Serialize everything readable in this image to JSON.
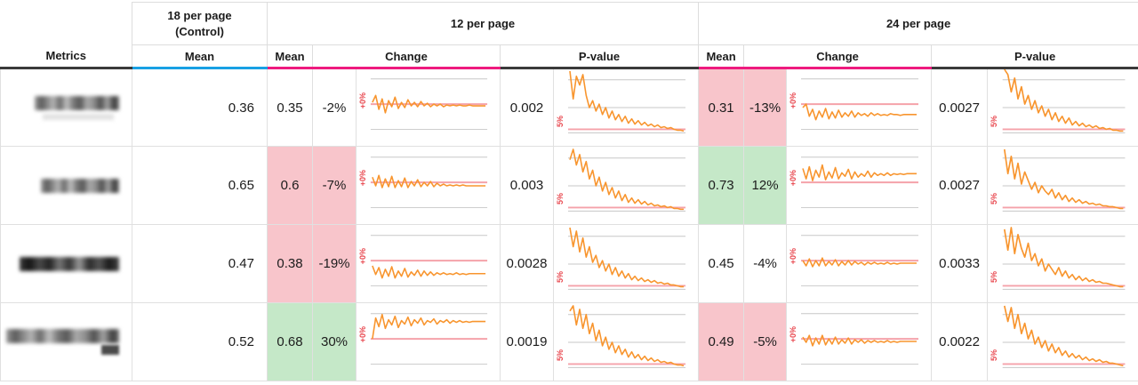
{
  "header": {
    "metrics": "Metrics",
    "control": {
      "line1": "18 per page",
      "line2": "(Control)"
    },
    "group12": "12 per page",
    "group24": "24 per page",
    "mean": "Mean",
    "change": "Change",
    "pvalue": "P-value"
  },
  "spark": {
    "change_label": "+0%",
    "pvalue_label": "5%"
  },
  "colors": {
    "control_underline": "#18A0E4",
    "variant_underline": "#EE1A7E",
    "pvalue_underline": "#3A3A3A",
    "negative_bg": "#F8C5CB",
    "positive_bg": "#C5E8C8",
    "spark_line_orange": "#F8952E",
    "reference_pink": "#F5A2AA",
    "spark_label_red": "#E8484F",
    "grid_gray": "#C7C7C7"
  },
  "rows": [
    {
      "metric_redacted": true,
      "control_mean": "0.36",
      "v12": {
        "mean": "0.35",
        "change": "-2%",
        "pvalue": "0.002",
        "mean_hl": "none",
        "change_hl": "none",
        "change_spark": [
          38,
          30,
          46,
          34,
          50,
          36,
          43,
          32,
          45,
          38,
          44,
          35,
          42,
          38,
          43,
          37,
          42,
          39,
          43,
          40,
          42,
          40,
          43,
          41,
          42,
          41,
          42,
          41,
          42,
          42,
          41,
          42,
          42,
          42,
          42,
          42
        ],
        "pvalue_spark": [
          2,
          34,
          8,
          18,
          6,
          30,
          44,
          36,
          48,
          40,
          52,
          44,
          56,
          48,
          58,
          52,
          60,
          54,
          62,
          57,
          63,
          59,
          64,
          61,
          65,
          63,
          66,
          64,
          67,
          66,
          68,
          67,
          69,
          70,
          70,
          71
        ]
      },
      "v24": {
        "mean": "0.31",
        "change": "-13%",
        "pvalue": "0.0027",
        "mean_hl": "negative",
        "change_hl": "negative",
        "change_spark": [
          44,
          40,
          54,
          46,
          58,
          48,
          55,
          45,
          57,
          49,
          56,
          47,
          55,
          50,
          54,
          48,
          55,
          50,
          53,
          51,
          54,
          50,
          53,
          51,
          53,
          52,
          53,
          51,
          52,
          52,
          53,
          52,
          52,
          52,
          52,
          52
        ],
        "pvalue_spark": [
          0,
          6,
          26,
          10,
          34,
          20,
          40,
          30,
          46,
          36,
          50,
          42,
          54,
          46,
          58,
          50,
          60,
          54,
          62,
          56,
          64,
          60,
          65,
          62,
          66,
          64,
          67,
          65,
          68,
          67,
          69,
          68,
          70,
          70,
          71,
          71
        ]
      }
    },
    {
      "metric_redacted": true,
      "control_mean": "0.65",
      "v12": {
        "mean": "0.6",
        "change": "-7%",
        "pvalue": "0.003",
        "mean_hl": "negative",
        "change_hl": "negative",
        "change_spark": [
          34,
          44,
          32,
          46,
          36,
          45,
          33,
          46,
          38,
          45,
          35,
          46,
          39,
          44,
          37,
          45,
          40,
          44,
          39,
          45,
          41,
          44,
          42,
          44,
          43,
          44,
          43,
          44,
          43,
          44,
          44,
          44,
          44,
          44,
          44,
          44
        ],
        "pvalue_spark": [
          14,
          2,
          20,
          8,
          28,
          16,
          36,
          26,
          44,
          34,
          50,
          40,
          54,
          46,
          58,
          50,
          61,
          54,
          63,
          58,
          64,
          60,
          65,
          62,
          66,
          64,
          67,
          66,
          68,
          67,
          69,
          68,
          70,
          70,
          71,
          71
        ]
      },
      "v24": {
        "mean": "0.73",
        "change": "12%",
        "pvalue": "0.0027",
        "mean_hl": "positive",
        "change_hl": "positive",
        "change_spark": [
          24,
          36,
          22,
          38,
          26,
          34,
          20,
          37,
          28,
          35,
          23,
          36,
          29,
          33,
          25,
          36,
          28,
          34,
          30,
          33,
          27,
          34,
          29,
          32,
          30,
          32,
          29,
          32,
          30,
          31,
          30,
          31,
          30,
          30,
          30,
          30
        ],
        "pvalue_spark": [
          2,
          30,
          10,
          36,
          18,
          42,
          28,
          38,
          48,
          40,
          52,
          44,
          50,
          54,
          48,
          58,
          52,
          60,
          55,
          62,
          58,
          63,
          60,
          64,
          62,
          65,
          64,
          66,
          65,
          67,
          67,
          68,
          68,
          69,
          70,
          70
        ]
      }
    },
    {
      "metric_redacted": true,
      "control_mean": "0.47",
      "v12": {
        "mean": "0.38",
        "change": "-19%",
        "pvalue": "0.0028",
        "mean_hl": "negative",
        "change_hl": "negative",
        "change_spark": [
          46,
          56,
          48,
          60,
          50,
          58,
          47,
          60,
          52,
          58,
          49,
          59,
          53,
          57,
          51,
          58,
          52,
          57,
          53,
          57,
          54,
          56,
          54,
          56,
          55,
          56,
          54,
          56,
          55,
          56,
          55,
          55,
          55,
          55,
          55,
          55
        ],
        "pvalue_spark": [
          2,
          24,
          6,
          30,
          14,
          36,
          24,
          42,
          34,
          48,
          40,
          52,
          44,
          56,
          48,
          58,
          52,
          60,
          55,
          62,
          58,
          63,
          60,
          64,
          62,
          65,
          63,
          66,
          65,
          67,
          66,
          68,
          68,
          69,
          70,
          70
        ]
      },
      "v24": {
        "mean": "0.45",
        "change": "-4%",
        "pvalue": "0.0033",
        "mean_hl": "none",
        "change_hl": "none",
        "change_spark": [
          40,
          46,
          38,
          47,
          40,
          46,
          37,
          46,
          41,
          45,
          39,
          46,
          41,
          45,
          40,
          45,
          41,
          44,
          42,
          45,
          42,
          44,
          42,
          44,
          43,
          44,
          42,
          44,
          43,
          44,
          43,
          43,
          43,
          43,
          43,
          43
        ],
        "pvalue_spark": [
          4,
          28,
          2,
          32,
          10,
          26,
          36,
          20,
          40,
          32,
          46,
          38,
          52,
          44,
          50,
          56,
          48,
          58,
          52,
          60,
          56,
          62,
          58,
          63,
          60,
          64,
          62,
          65,
          64,
          66,
          66,
          67,
          68,
          69,
          70,
          70
        ]
      }
    },
    {
      "metric_redacted": true,
      "control_mean": "0.52",
      "v12": {
        "mean": "0.68",
        "change": "30%",
        "pvalue": "0.0019",
        "mean_hl": "positive",
        "change_hl": "positive",
        "change_spark": [
          40,
          16,
          26,
          12,
          28,
          18,
          24,
          14,
          27,
          19,
          23,
          15,
          25,
          18,
          22,
          16,
          24,
          19,
          21,
          17,
          23,
          19,
          21,
          18,
          22,
          19,
          21,
          19,
          21,
          20,
          21,
          20,
          20,
          20,
          20,
          20
        ],
        "pvalue_spark": [
          8,
          2,
          24,
          6,
          28,
          12,
          34,
          22,
          42,
          30,
          48,
          38,
          52,
          44,
          56,
          48,
          58,
          52,
          61,
          55,
          62,
          58,
          64,
          60,
          65,
          62,
          66,
          64,
          67,
          66,
          68,
          67,
          69,
          70,
          70,
          71
        ]
      },
      "v24": {
        "mean": "0.49",
        "change": "-5%",
        "pvalue": "0.0022",
        "mean_hl": "negative",
        "change_hl": "negative",
        "change_spark": [
          38,
          44,
          36,
          48,
          39,
          46,
          36,
          47,
          40,
          46,
          38,
          46,
          41,
          45,
          39,
          46,
          41,
          44,
          41,
          45,
          42,
          44,
          42,
          44,
          43,
          44,
          42,
          44,
          43,
          44,
          43,
          43,
          43,
          43,
          43,
          43
        ],
        "pvalue_spark": [
          2,
          20,
          4,
          28,
          12,
          34,
          22,
          40,
          30,
          46,
          38,
          50,
          42,
          54,
          46,
          56,
          50,
          59,
          54,
          61,
          57,
          62,
          59,
          64,
          61,
          65,
          63,
          66,
          64,
          67,
          66,
          68,
          68,
          69,
          70,
          71
        ]
      }
    }
  ],
  "chart_data": {
    "type": "table",
    "title": "A/B test metrics comparison: 18 per page (Control) vs 12 per page vs 24 per page",
    "columns": [
      "Metrics",
      "18 per page (Control) Mean",
      "12 per page Mean",
      "12 per page Change",
      "12 per page P-value",
      "24 per page Mean",
      "24 per page Change",
      "24 per page P-value"
    ],
    "rows": [
      [
        "(blurred)",
        0.36,
        0.35,
        "-2%",
        0.002,
        0.31,
        "-13%",
        0.0027
      ],
      [
        "(blurred)",
        0.65,
        0.6,
        "-7%",
        0.003,
        0.73,
        "12%",
        0.0027
      ],
      [
        "(blurred)",
        0.47,
        0.38,
        "-19%",
        0.0028,
        0.45,
        "-4%",
        0.0033
      ],
      [
        "(blurred)",
        0.52,
        0.68,
        "30%",
        0.0019,
        0.49,
        "-5%",
        0.0022
      ]
    ],
    "sparklines": {
      "change": "orange time-series oscillating around pink +0% reference line, gray upper/lower bound lines",
      "pvalue": "orange time-series decaying from top toward pink 5% significance line, gray gridlines"
    },
    "legend_position": "none",
    "grid": "partial (reference lines only)"
  }
}
